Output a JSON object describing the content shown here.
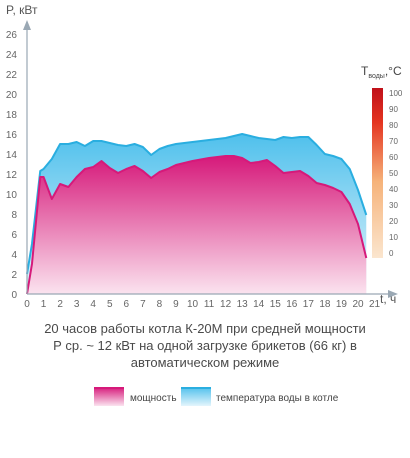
{
  "chart_data": {
    "type": "area",
    "ylabel": "P, кВт",
    "xlabel": "t, ч",
    "x_ticks": [
      0,
      1,
      2,
      3,
      4,
      5,
      6,
      7,
      8,
      9,
      10,
      11,
      12,
      13,
      14,
      15,
      16,
      17,
      18,
      19,
      20,
      21
    ],
    "y_ticks": [
      0,
      2,
      4,
      6,
      8,
      10,
      12,
      14,
      16,
      18,
      20,
      22,
      24,
      26
    ],
    "xlim": [
      0,
      21
    ],
    "ylim": [
      0,
      27
    ],
    "caption": [
      "20 часов работы котла К-20М при средней мощности",
      "Р ср. ~ 12 кВт на одной загрузке брикетов (66 кг) в",
      "автоматическом режиме"
    ],
    "series": [
      {
        "name": "мощность",
        "color": "#d6197a",
        "x": [
          0,
          0.3,
          0.8,
          1.0,
          1.5,
          2.0,
          2.5,
          3.0,
          3.5,
          4.0,
          4.5,
          5.0,
          5.5,
          6.0,
          6.5,
          7.0,
          7.5,
          8.0,
          8.5,
          9.0,
          9.5,
          10.0,
          11.0,
          12.0,
          12.5,
          13.0,
          13.5,
          14.0,
          14.5,
          15.0,
          15.5,
          16.0,
          16.5,
          17.0,
          17.5,
          18.0,
          18.5,
          19.0,
          19.5,
          20.0,
          20.5
        ],
        "y": [
          0,
          3,
          11.7,
          11.7,
          9.5,
          11.0,
          10.7,
          11.7,
          12.5,
          12.7,
          13.3,
          12.6,
          12.1,
          12.5,
          12.8,
          12.3,
          11.6,
          12.2,
          12.5,
          12.9,
          13.1,
          13.3,
          13.6,
          13.8,
          13.8,
          13.6,
          13.1,
          13.2,
          13.4,
          12.8,
          12.1,
          12.2,
          12.3,
          11.8,
          11.1,
          10.9,
          10.6,
          10.2,
          9.0,
          7.0,
          3.6
        ]
      },
      {
        "name": "температура воды в котле",
        "color": "#2aaee0",
        "x": [
          0,
          0.3,
          0.8,
          1.0,
          1.5,
          2.0,
          2.5,
          3.0,
          3.5,
          4.0,
          4.5,
          5.0,
          5.5,
          6.0,
          6.5,
          7.0,
          7.5,
          8.0,
          8.5,
          9.0,
          9.5,
          10.0,
          11.0,
          12.0,
          12.5,
          13.0,
          13.5,
          14.0,
          14.5,
          15.0,
          15.5,
          16.0,
          16.5,
          17.0,
          17.5,
          18.0,
          18.5,
          19.0,
          19.5,
          20.0,
          20.5
        ],
        "y": [
          2,
          5,
          12.3,
          12.5,
          13.5,
          15.0,
          15.0,
          15.2,
          14.8,
          15.3,
          15.3,
          15.1,
          14.9,
          14.8,
          15.0,
          14.7,
          13.9,
          14.5,
          14.8,
          15.0,
          15.1,
          15.2,
          15.4,
          15.6,
          15.8,
          16.0,
          15.8,
          15.6,
          15.5,
          15.4,
          15.7,
          15.6,
          15.7,
          15.7,
          14.9,
          14.0,
          13.8,
          13.5,
          12.5,
          10.4,
          7.9
        ]
      }
    ],
    "color_scale": {
      "title_main": "T",
      "title_sub": "воды",
      "title_unit": ",°C",
      "ticks": [
        0,
        10,
        20,
        30,
        40,
        50,
        60,
        70,
        80,
        90,
        100
      ],
      "range": [
        0,
        100
      ],
      "colors": [
        "#fbe6cf",
        "#f6b37a",
        "#e43420",
        "#c0101a"
      ]
    },
    "legend": [
      {
        "label": "мощность",
        "color": "#d6197a"
      },
      {
        "label": "температура воды в котле",
        "color": "#2aaee0"
      }
    ],
    "grid": false
  }
}
